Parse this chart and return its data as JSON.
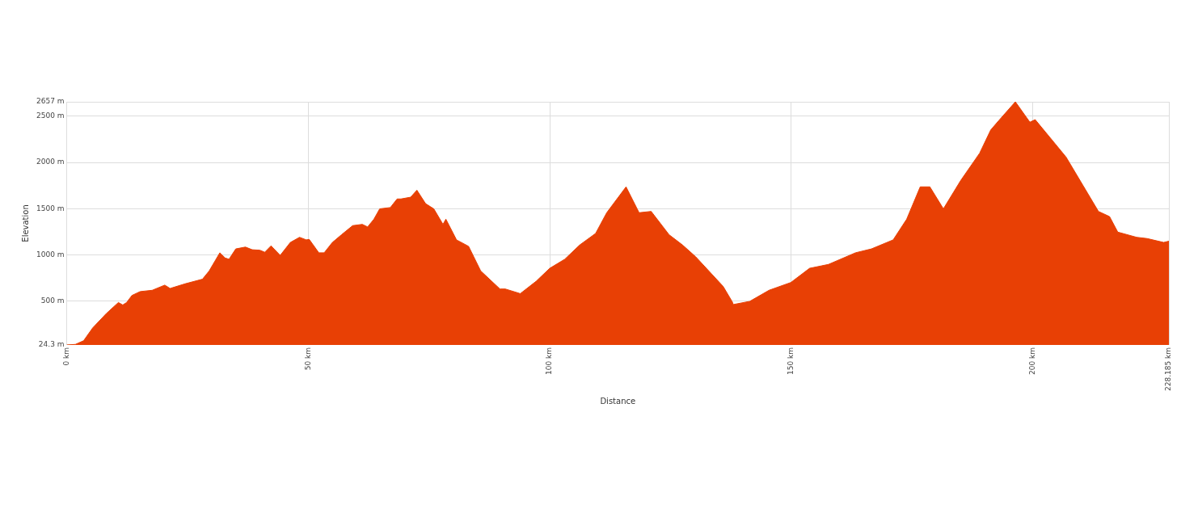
{
  "chart_data": {
    "type": "area",
    "xlabel": "Distance",
    "ylabel": "Elevation",
    "color": "#e84005",
    "grid": true,
    "legend": false,
    "xlim": [
      0,
      228.185
    ],
    "ylim": [
      24.3,
      2657
    ],
    "xticks": [
      {
        "value": 0,
        "label": "0 km"
      },
      {
        "value": 50,
        "label": "50 km"
      },
      {
        "value": 100,
        "label": "100 km"
      },
      {
        "value": 150,
        "label": "150 km"
      },
      {
        "value": 200,
        "label": "200 km"
      },
      {
        "value": 228.185,
        "label": "228.185 km"
      }
    ],
    "yticks": [
      {
        "value": 24.3,
        "label": "24.3 m"
      },
      {
        "value": 500,
        "label": "500 m"
      },
      {
        "value": 1000,
        "label": "1000 m"
      },
      {
        "value": 1500,
        "label": "1500 m"
      },
      {
        "value": 2000,
        "label": "2000 m"
      },
      {
        "value": 2500,
        "label": "2500 m"
      },
      {
        "value": 2657,
        "label": "2657 m"
      }
    ],
    "x": [
      0,
      1.8,
      3.5,
      5.4,
      8.2,
      10.7,
      11.6,
      12.4,
      13.5,
      15.2,
      17.7,
      20.3,
      21.4,
      24.5,
      28.1,
      29.5,
      31.7,
      32.8,
      33.6,
      35.0,
      37.0,
      38.4,
      40.0,
      41.0,
      42.3,
      44.2,
      46.3,
      48.2,
      49.6,
      50.2,
      52.2,
      53.3,
      55.0,
      56.9,
      59.2,
      61.2,
      62.3,
      63.6,
      64.8,
      67.0,
      68.4,
      69.2,
      71.2,
      72.5,
      74.3,
      76.0,
      77.9,
      78.5,
      80.7,
      83.2,
      85.7,
      89.7,
      90.8,
      93.9,
      97.2,
      100.0,
      103.1,
      106.2,
      109.5,
      111.8,
      115.8,
      118.5,
      121.0,
      124.7,
      127.5,
      130.2,
      135.9,
      137.8,
      138.0,
      141.4,
      145.4,
      149.9,
      153.8,
      157.7,
      163.3,
      166.6,
      171.1,
      173.9,
      176.7,
      178.7,
      181.5,
      185.1,
      189.0,
      191.3,
      192.9,
      196.4,
      199.4,
      200.5,
      204.7,
      206.9,
      213.6,
      215.9,
      217.6,
      221.5,
      223.7,
      227.1,
      228.185
    ],
    "values": [
      24.3,
      30,
      70,
      210,
      364,
      484,
      457,
      484,
      560,
      602,
      616,
      672,
      636,
      686,
      736,
      826,
      1022,
      966,
      952,
      1064,
      1084,
      1055,
      1050,
      1028,
      1097,
      994,
      1134,
      1190,
      1162,
      1167,
      1022,
      1022,
      1134,
      1218,
      1316,
      1330,
      1302,
      1386,
      1498,
      1512,
      1605,
      1605,
      1624,
      1700,
      1554,
      1498,
      1330,
      1386,
      1162,
      1092,
      826,
      630,
      630,
      580,
      714,
      854,
      952,
      1106,
      1232,
      1456,
      1736,
      1456,
      1470,
      1218,
      1106,
      980,
      658,
      490,
      462,
      496,
      616,
      700,
      854,
      896,
      1022,
      1064,
      1162,
      1386,
      1736,
      1736,
      1498,
      1806,
      2100,
      2352,
      2450,
      2657,
      2436,
      2464,
      2198,
      2058,
      1470,
      1414,
      1246,
      1190,
      1176,
      1134,
      1148
    ]
  }
}
